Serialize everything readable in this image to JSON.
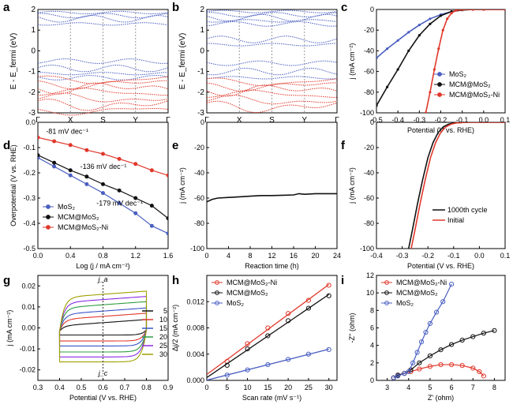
{
  "colors": {
    "blue": "#4a5fc1",
    "black": "#111111",
    "red": "#e0382b",
    "grid": "#9a9a9a",
    "c5": "#111111",
    "c10": "#e0382b",
    "c15": "#3a55c8",
    "c20": "#2f9e44",
    "c25": "#8a2be2",
    "c30": "#a0a000"
  },
  "chart_data": [
    {
      "panel": "a",
      "type": "line",
      "ylabel": "E - E_fermi (eV)",
      "ylim": [
        -3,
        2
      ],
      "yticks": [
        "2",
        "1",
        "0",
        "-1",
        "-2",
        "-3"
      ],
      "xticks": [
        "Γ",
        "X",
        "S",
        "Y",
        "Γ"
      ],
      "grid": "dotted verticals at high-symmetry points",
      "series": [
        {
          "color": "blue",
          "bands_meV_samples": [
            1.85,
            1.7,
            1.55,
            1.3,
            -0.5,
            -0.85,
            -1.1,
            -1.3
          ]
        },
        {
          "color": "red",
          "bands_meV_samples": [
            -1.4,
            -1.6,
            -1.8,
            -2.0,
            -2.3,
            -2.6,
            -2.9
          ]
        }
      ]
    },
    {
      "panel": "b",
      "type": "line",
      "ylabel": "E - E_fermi (eV)",
      "ylim": [
        -3,
        2
      ],
      "yticks": [
        "2",
        "1",
        "0",
        "-1",
        "-2",
        "-3"
      ],
      "xticks": [
        "Γ",
        "X",
        "S",
        "Y",
        "Γ"
      ],
      "grid": "dotted verticals at high-symmetry points",
      "series": [
        {
          "color": "blue",
          "bands_meV_samples": [
            1.9,
            1.75,
            1.6,
            1.45,
            1.3,
            0.55,
            0.3,
            -0.6,
            -1.0,
            -1.3
          ]
        },
        {
          "color": "red",
          "bands_meV_samples": [
            -1.5,
            -1.7,
            -1.9,
            -2.1,
            -2.4,
            -2.7
          ]
        }
      ]
    },
    {
      "panel": "c",
      "type": "line",
      "xlabel": "Potential (V vs. RHE)",
      "ylabel": "j (mA cm⁻²)",
      "xlim": [
        -0.5,
        0.1
      ],
      "ylim": [
        -100,
        0
      ],
      "xticks": [
        "-0.5",
        "-0.4",
        "-0.3",
        "-0.2",
        "-0.1",
        "0.0",
        "0.1"
      ],
      "yticks": [
        "0",
        "-20",
        "-40",
        "-60",
        "-80",
        "-100"
      ],
      "legend": "bottom-right",
      "series": [
        {
          "name": "MoS₂",
          "color": "blue",
          "x": [
            -0.5,
            -0.45,
            -0.4,
            -0.35,
            -0.3,
            -0.25,
            -0.2,
            -0.15,
            -0.1,
            -0.05,
            0.0,
            0.1
          ],
          "y": [
            -47,
            -38,
            -30,
            -22,
            -15,
            -9,
            -5,
            -2,
            -0.5,
            0,
            0,
            0
          ]
        },
        {
          "name": "MCM@MoS₂",
          "color": "black",
          "x": [
            -0.5,
            -0.45,
            -0.4,
            -0.35,
            -0.3,
            -0.25,
            -0.2,
            -0.15,
            -0.1,
            -0.05,
            0.0,
            0.1
          ],
          "y": [
            -93,
            -75,
            -58,
            -40,
            -25,
            -14,
            -6,
            -2,
            -0.5,
            0,
            0,
            0
          ]
        },
        {
          "name": "MCM@MoS₂-Ni",
          "color": "red",
          "x": [
            -0.27,
            -0.25,
            -0.23,
            -0.21,
            -0.19,
            -0.17,
            -0.15,
            -0.13,
            -0.1,
            -0.05,
            0.0,
            0.1
          ],
          "y": [
            -100,
            -80,
            -58,
            -38,
            -20,
            -9,
            -3.5,
            -1,
            -0.2,
            0,
            0,
            0
          ]
        }
      ]
    },
    {
      "panel": "d",
      "type": "scatter",
      "xlabel": "Log (j / mA cm⁻²)",
      "ylabel": "Overpotential (V vs. RHE)",
      "xlim": [
        0.0,
        1.6
      ],
      "ylim": [
        -0.5,
        0.0
      ],
      "xticks": [
        "0.0",
        "0.4",
        "0.8",
        "1.2",
        "1.6"
      ],
      "yticks": [
        "0.0",
        "-0.1",
        "-0.2",
        "-0.3",
        "-0.4",
        "-0.5"
      ],
      "legend": "bottom-left",
      "annotations": [
        "-81 mV dec⁻¹",
        "-136 mV dec⁻¹",
        "-179 mV dec⁻¹"
      ],
      "series": [
        {
          "name": "MoS₂",
          "color": "blue",
          "x": [
            0.0,
            0.2,
            0.4,
            0.6,
            0.8,
            1.0,
            1.2,
            1.4,
            1.6
          ],
          "y": [
            -0.14,
            -0.175,
            -0.21,
            -0.245,
            -0.28,
            -0.32,
            -0.36,
            -0.41,
            -0.44
          ]
        },
        {
          "name": "MCM@MoS₂",
          "color": "black",
          "x": [
            0.0,
            0.2,
            0.4,
            0.6,
            0.8,
            1.0,
            1.2,
            1.4,
            1.6
          ],
          "y": [
            -0.13,
            -0.16,
            -0.19,
            -0.215,
            -0.245,
            -0.27,
            -0.3,
            -0.33,
            -0.38
          ]
        },
        {
          "name": "MCM@MoS₂-Ni",
          "color": "red",
          "x": [
            0.0,
            0.2,
            0.4,
            0.6,
            0.8,
            1.0,
            1.2,
            1.4,
            1.6
          ],
          "y": [
            -0.06,
            -0.075,
            -0.09,
            -0.11,
            -0.125,
            -0.145,
            -0.165,
            -0.19,
            -0.21
          ]
        }
      ]
    },
    {
      "panel": "e",
      "type": "line",
      "xlabel": "Reaction time (h)",
      "ylabel": "j (mA cm⁻²)",
      "xlim": [
        0,
        24
      ],
      "ylim": [
        -100,
        0
      ],
      "xticks": [
        "0",
        "4",
        "8",
        "12",
        "16",
        "20",
        "24"
      ],
      "yticks": [
        "0",
        "-20",
        "-40",
        "-60",
        "-80",
        "-100"
      ],
      "series": [
        {
          "color": "black",
          "x": [
            0,
            1,
            2,
            4,
            6,
            8,
            10,
            12,
            14,
            16,
            17,
            18,
            20,
            22,
            24
          ],
          "y": [
            -63,
            -61,
            -60,
            -59.5,
            -59,
            -58.5,
            -58,
            -58,
            -57.8,
            -57.5,
            -56.5,
            -57,
            -56.5,
            -56.5,
            -56.5
          ]
        }
      ]
    },
    {
      "panel": "f",
      "type": "line",
      "xlabel": "Potential (V vs. RHE)",
      "ylabel": "j (mA cm⁻²)",
      "xlim": [
        -0.4,
        0.1
      ],
      "ylim": [
        -100,
        0
      ],
      "xticks": [
        "-0.4",
        "-0.3",
        "-0.2",
        "-0.1",
        "0.0",
        "0.1"
      ],
      "yticks": [
        "0",
        "-20",
        "-40",
        "-60",
        "-80",
        "-100"
      ],
      "legend": "bottom-right",
      "series": [
        {
          "name": "1000th cycle",
          "color": "black",
          "x": [
            -0.275,
            -0.26,
            -0.24,
            -0.22,
            -0.2,
            -0.18,
            -0.16,
            -0.14,
            -0.12,
            -0.1,
            -0.05,
            0.0,
            0.1
          ],
          "y": [
            -100,
            -85,
            -64,
            -45,
            -28,
            -16,
            -8,
            -3.5,
            -1.5,
            -0.5,
            0,
            0,
            0
          ]
        },
        {
          "name": "Initial",
          "color": "red",
          "x": [
            -0.265,
            -0.25,
            -0.23,
            -0.21,
            -0.19,
            -0.17,
            -0.15,
            -0.13,
            -0.11,
            -0.09,
            -0.05,
            0.0,
            0.1
          ],
          "y": [
            -100,
            -85,
            -64,
            -45,
            -28,
            -16,
            -8,
            -3.5,
            -1.5,
            -0.5,
            0,
            0,
            0
          ]
        }
      ]
    },
    {
      "panel": "g",
      "type": "line",
      "xlabel": "Potential (V vs. RHE)",
      "ylabel": "j (mA cm⁻²)",
      "xlim": [
        0.3,
        0.9
      ],
      "ylim": [
        -0.025,
        0.025
      ],
      "xticks": [
        "0.3",
        "0.4",
        "0.5",
        "0.6",
        "0.7",
        "0.8",
        "0.9"
      ],
      "yticks": [
        "0.02",
        "0.01",
        "0.00",
        "-0.01",
        "-0.02"
      ],
      "legend": "right",
      "annotations": [
        "j_a",
        "j_c"
      ],
      "series": [
        {
          "name": "5",
          "color": "c5",
          "amp": 0.0025
        },
        {
          "name": "10",
          "color": "c10",
          "amp": 0.0055
        },
        {
          "name": "15",
          "color": "c15",
          "amp": 0.008
        },
        {
          "name": "20",
          "color": "c20",
          "amp": 0.011
        },
        {
          "name": "25",
          "color": "c25",
          "amp": 0.0135
        },
        {
          "name": "30",
          "color": "c30",
          "amp": 0.016
        }
      ]
    },
    {
      "panel": "h",
      "type": "scatter",
      "xlabel": "Scan rate (mV s⁻¹)",
      "ylabel": "Δj/2 (mA cm⁻²)",
      "xlim": [
        0,
        32
      ],
      "ylim": [
        0.0,
        0.016
      ],
      "xticks": [
        "0",
        "5",
        "10",
        "15",
        "20",
        "25",
        "30"
      ],
      "yticks": [
        "0.000",
        "0.004",
        "0.008",
        "0.012"
      ],
      "legend": "top-left",
      "series": [
        {
          "name": "MCM@MoS₂-Ni",
          "color": "red",
          "x": [
            5,
            10,
            15,
            20,
            25,
            30
          ],
          "y": [
            0.0029,
            0.0056,
            0.008,
            0.0102,
            0.0122,
            0.0145
          ]
        },
        {
          "name": "MCM@MoS₂",
          "color": "black",
          "x": [
            5,
            10,
            15,
            20,
            25,
            30
          ],
          "y": [
            0.0023,
            0.0048,
            0.0068,
            0.0091,
            0.011,
            0.0129
          ]
        },
        {
          "name": "MoS₂",
          "color": "blue",
          "x": [
            5,
            10,
            15,
            20,
            25,
            30
          ],
          "y": [
            0.0008,
            0.0016,
            0.0024,
            0.0032,
            0.004,
            0.0047
          ]
        }
      ]
    },
    {
      "panel": "i",
      "type": "scatter",
      "xlabel": "Z' (ohm)",
      "ylabel": "-Z'' (ohm)",
      "xlim": [
        2.5,
        8.5
      ],
      "ylim": [
        0,
        12
      ],
      "xticks": [
        "3",
        "4",
        "5",
        "6",
        "7",
        "8"
      ],
      "yticks": [
        "0",
        "2",
        "4",
        "6",
        "8",
        "10",
        "12"
      ],
      "legend": "top-left",
      "series": [
        {
          "name": "MCM@MoS₂-Ni",
          "color": "red",
          "x": [
            3.3,
            3.5,
            3.8,
            4.1,
            4.5,
            5.0,
            5.5,
            6.0,
            6.5,
            7.0,
            7.3,
            7.5
          ],
          "y": [
            0.3,
            0.6,
            0.8,
            1.0,
            1.3,
            1.6,
            1.8,
            1.8,
            1.7,
            1.4,
            1.0,
            0.5
          ]
        },
        {
          "name": "MCM@MoS₂",
          "color": "black",
          "x": [
            3.3,
            3.5,
            3.8,
            4.1,
            4.5,
            5.0,
            5.5,
            6.0,
            6.5,
            7.0,
            7.5,
            8.0
          ],
          "y": [
            0.3,
            0.6,
            0.8,
            1.2,
            2.0,
            2.8,
            3.5,
            4.1,
            4.6,
            5.0,
            5.4,
            5.7
          ]
        },
        {
          "name": "MoS₂",
          "color": "blue",
          "x": [
            3.3,
            3.5,
            3.8,
            4.0,
            4.2,
            4.4,
            4.6,
            4.8,
            5.0,
            5.3,
            5.6,
            6.0
          ],
          "y": [
            0.3,
            0.5,
            0.8,
            1.0,
            2.0,
            3.2,
            4.4,
            5.5,
            6.5,
            7.8,
            9.0,
            11.0
          ]
        }
      ]
    }
  ],
  "panel_labels": [
    "a",
    "b",
    "c",
    "d",
    "e",
    "f",
    "g",
    "h",
    "i"
  ]
}
